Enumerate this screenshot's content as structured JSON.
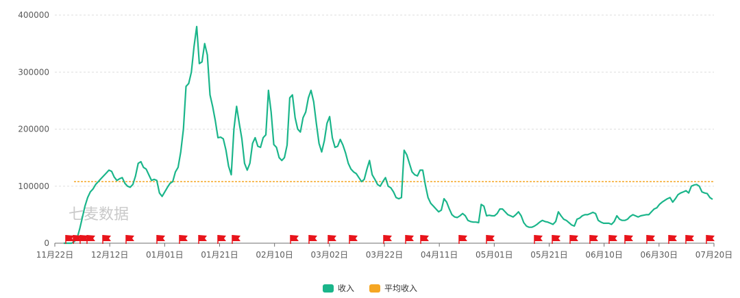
{
  "watermark": "七麦数据",
  "chart_data": {
    "type": "line",
    "x_ticks": [
      "11月22日",
      "12月12日",
      "01月01日",
      "01月21日",
      "02月10日",
      "03月02日",
      "03月22日",
      "04月11日",
      "05月01日",
      "05月21日",
      "06月10日",
      "06月30日",
      "07月20日"
    ],
    "y_ticks": [
      "0",
      "100000",
      "200000",
      "300000",
      "400000"
    ],
    "ylim": [
      0,
      400000
    ],
    "grid": true,
    "legend_position": "bottom-center",
    "series": [
      {
        "name": "收入",
        "color": "#1ab58a",
        "values": [
          0,
          0,
          0,
          0,
          3000,
          8000,
          25000,
          45000,
          65000,
          80000,
          90000,
          95000,
          103000,
          108000,
          113000,
          118000,
          123000,
          128000,
          126000,
          116000,
          110000,
          113000,
          115000,
          105000,
          100000,
          98000,
          103000,
          118000,
          140000,
          143000,
          133000,
          130000,
          120000,
          110000,
          112000,
          110000,
          88000,
          82000,
          90000,
          98000,
          105000,
          108000,
          125000,
          133000,
          160000,
          200000,
          275000,
          280000,
          300000,
          345000,
          380000,
          315000,
          318000,
          350000,
          330000,
          260000,
          240000,
          215000,
          185000,
          186000,
          183000,
          163000,
          135000,
          120000,
          200000,
          240000,
          210000,
          183000,
          140000,
          128000,
          140000,
          175000,
          185000,
          170000,
          168000,
          185000,
          190000,
          268000,
          230000,
          173000,
          168000,
          150000,
          145000,
          150000,
          172000,
          255000,
          260000,
          220000,
          200000,
          195000,
          220000,
          230000,
          255000,
          268000,
          248000,
          210000,
          175000,
          160000,
          180000,
          210000,
          222000,
          185000,
          168000,
          170000,
          182000,
          172000,
          158000,
          140000,
          130000,
          125000,
          122000,
          115000,
          108000,
          112000,
          130000,
          145000,
          120000,
          112000,
          103000,
          100000,
          108000,
          115000,
          100000,
          97000,
          90000,
          80000,
          78000,
          80000,
          163000,
          155000,
          140000,
          125000,
          120000,
          118000,
          128000,
          128000,
          102000,
          80000,
          70000,
          65000,
          60000,
          55000,
          58000,
          78000,
          72000,
          60000,
          50000,
          46000,
          45000,
          48000,
          52000,
          48000,
          40000,
          38000,
          37000,
          37000,
          36000,
          68000,
          65000,
          48000,
          49000,
          48000,
          48000,
          52000,
          60000,
          60000,
          55000,
          50000,
          48000,
          46000,
          50000,
          55000,
          48000,
          36000,
          30000,
          28000,
          28000,
          30000,
          33000,
          37000,
          40000,
          38000,
          37000,
          35000,
          33000,
          38000,
          55000,
          48000,
          42000,
          40000,
          36000,
          32000,
          30000,
          42000,
          44000,
          48000,
          50000,
          50000,
          52000,
          54000,
          52000,
          40000,
          37000,
          35000,
          35000,
          35000,
          33000,
          38000,
          48000,
          42000,
          40000,
          40000,
          42000,
          47000,
          50000,
          48000,
          46000,
          48000,
          49000,
          50000,
          50000,
          55000,
          60000,
          62000,
          68000,
          72000,
          75000,
          78000,
          80000,
          72000,
          78000,
          85000,
          88000,
          90000,
          92000,
          88000,
          100000,
          102000,
          103000,
          100000,
          90000,
          88000,
          87000,
          80000,
          77000
        ]
      },
      {
        "name": "平均收入",
        "color": "#f5a623",
        "values": [
          108000
        ]
      }
    ],
    "markers": [
      "flag",
      "flag",
      "flag",
      "flag",
      "flag",
      "flag",
      "flag",
      "flag",
      "flag",
      "flag",
      "flag",
      "flag",
      "flag",
      "flag",
      "flag",
      "flag",
      "flag",
      "flag",
      "flag",
      "flag",
      "flag",
      "flag",
      "flag",
      "flag",
      "flag",
      "flag",
      "flag",
      "flag",
      "flag",
      "flag",
      "flag",
      "flag",
      "flag",
      "flag",
      "flag"
    ],
    "marker_color": "#e8141b"
  }
}
